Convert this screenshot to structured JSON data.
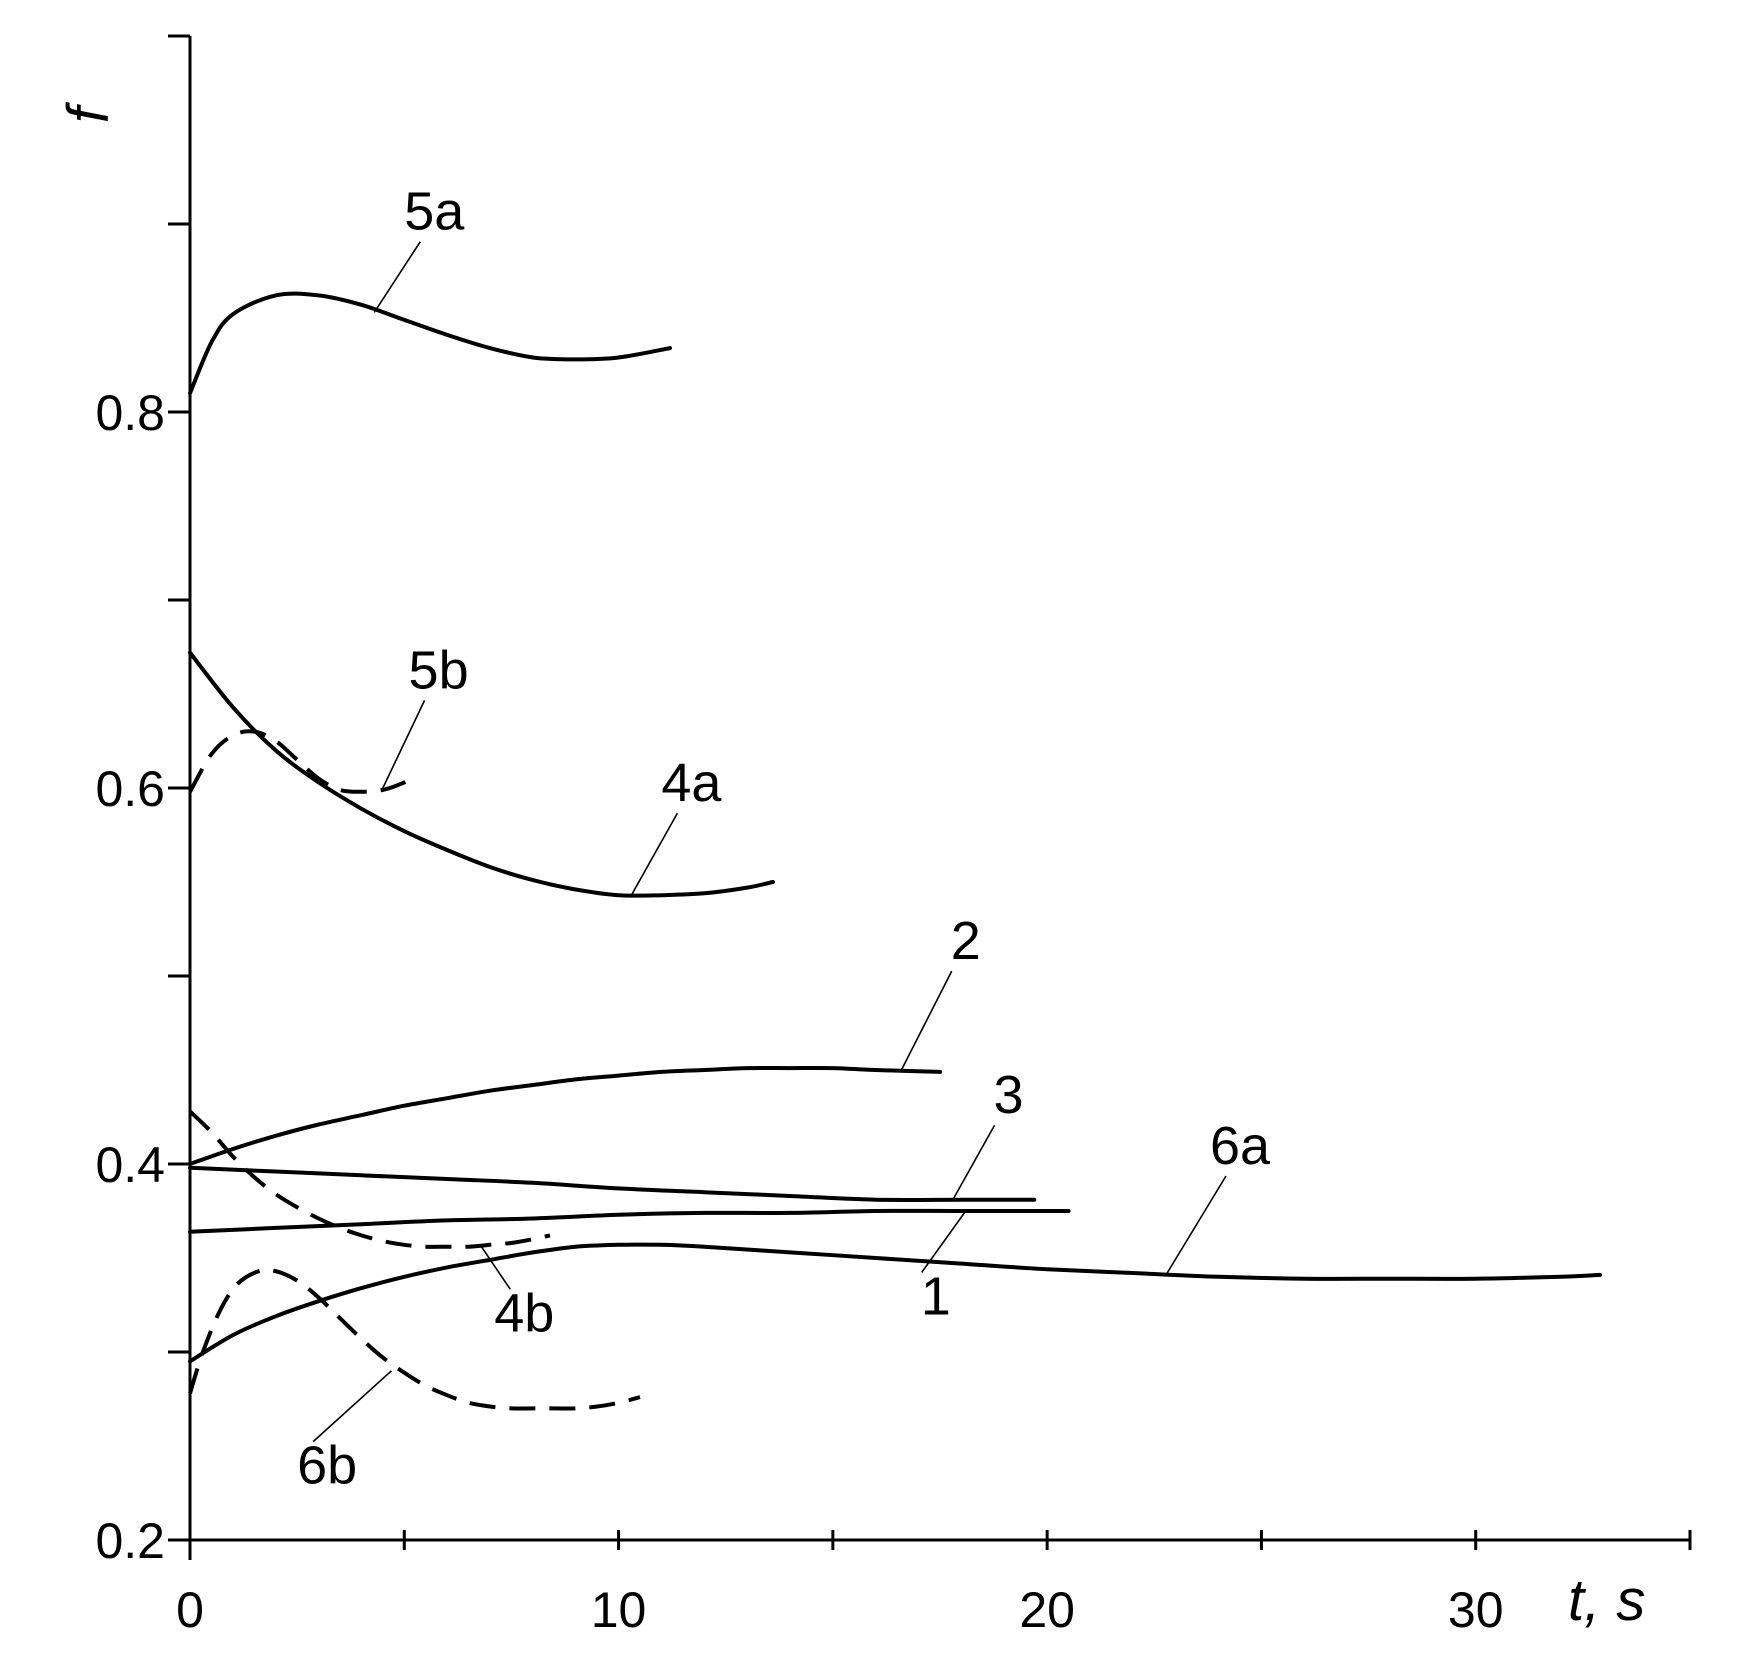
{
  "chart_data": {
    "type": "line",
    "title": "",
    "xlabel": "t",
    "xunit": ", s",
    "ylabel": "f",
    "xlim": [
      0,
      35
    ],
    "ylim": [
      0.2,
      1.0
    ],
    "x_ticks": [
      0,
      5,
      10,
      15,
      20,
      25,
      30,
      35
    ],
    "x_tick_labels": [
      {
        "value": 0,
        "text": "0"
      },
      {
        "value": 10,
        "text": "10"
      },
      {
        "value": 20,
        "text": "20"
      },
      {
        "value": 30,
        "text": "30"
      }
    ],
    "y_ticks": [
      0.2,
      0.3,
      0.4,
      0.5,
      0.6,
      0.7,
      0.8,
      0.9,
      1.0
    ],
    "y_tick_labels": [
      {
        "value": 0.2,
        "text": "0.2"
      },
      {
        "value": 0.4,
        "text": "0.4"
      },
      {
        "value": 0.6,
        "text": "0.6"
      },
      {
        "value": 0.8,
        "text": "0.8"
      }
    ],
    "grid": false,
    "legend": "none",
    "series": [
      {
        "name": "5a",
        "style": "solid",
        "x": [
          0,
          0.5,
          1,
          2,
          3,
          4,
          5,
          6,
          7,
          8,
          9,
          10,
          11.2
        ],
        "y": [
          0.81,
          0.837,
          0.852,
          0.862,
          0.862,
          0.857,
          0.849,
          0.841,
          0.834,
          0.829,
          0.828,
          0.829,
          0.834
        ]
      },
      {
        "name": "5b",
        "style": "dashed",
        "x": [
          0,
          0.5,
          1,
          1.5,
          2,
          2.5,
          3,
          3.5,
          4,
          4.5,
          5,
          5.2
        ],
        "y": [
          0.598,
          0.618,
          0.628,
          0.63,
          0.625,
          0.615,
          0.605,
          0.599,
          0.598,
          0.599,
          0.603,
          0.606
        ]
      },
      {
        "name": "4a",
        "style": "solid",
        "x": [
          0,
          1,
          2,
          3,
          4,
          5,
          6,
          7,
          8,
          9,
          10,
          11,
          12,
          13,
          13.6
        ],
        "y": [
          0.672,
          0.643,
          0.62,
          0.603,
          0.589,
          0.577,
          0.567,
          0.558,
          0.551,
          0.546,
          0.543,
          0.543,
          0.544,
          0.547,
          0.55
        ]
      },
      {
        "name": "2",
        "style": "solid",
        "x": [
          0,
          1,
          2,
          3,
          4,
          5,
          6,
          7,
          8,
          9,
          10,
          11,
          12,
          13,
          14,
          15,
          16,
          17.5
        ],
        "y": [
          0.4,
          0.408,
          0.415,
          0.421,
          0.426,
          0.431,
          0.435,
          0.439,
          0.442,
          0.445,
          0.447,
          0.449,
          0.45,
          0.451,
          0.451,
          0.451,
          0.45,
          0.449
        ]
      },
      {
        "name": "3",
        "style": "solid",
        "x": [
          0,
          2,
          4,
          6,
          8,
          10,
          12,
          14,
          16,
          18,
          19.7
        ],
        "y": [
          0.398,
          0.396,
          0.394,
          0.392,
          0.39,
          0.387,
          0.385,
          0.383,
          0.381,
          0.381,
          0.381
        ]
      },
      {
        "name": "1",
        "style": "solid",
        "x": [
          0,
          2,
          4,
          6,
          8,
          10,
          12,
          14,
          16,
          18,
          20.5
        ],
        "y": [
          0.364,
          0.366,
          0.368,
          0.37,
          0.371,
          0.373,
          0.374,
          0.374,
          0.375,
          0.375,
          0.375
        ]
      },
      {
        "name": "6a",
        "style": "solid",
        "x": [
          0,
          1,
          2,
          3,
          4,
          5,
          6,
          7,
          8,
          9,
          10,
          11,
          12,
          14,
          16,
          18,
          20,
          22,
          24,
          26,
          28,
          30,
          32,
          32.9
        ],
        "y": [
          0.295,
          0.309,
          0.319,
          0.327,
          0.334,
          0.34,
          0.345,
          0.349,
          0.353,
          0.356,
          0.357,
          0.357,
          0.356,
          0.353,
          0.35,
          0.347,
          0.344,
          0.342,
          0.34,
          0.339,
          0.339,
          0.339,
          0.34,
          0.341
        ]
      },
      {
        "name": "4b",
        "style": "dashed",
        "x": [
          0,
          0.5,
          1,
          1.5,
          2,
          2.5,
          3,
          3.5,
          4,
          4.5,
          5,
          5.5,
          6,
          6.5,
          7,
          7.5,
          8,
          8.4
        ],
        "y": [
          0.428,
          0.417,
          0.404,
          0.393,
          0.384,
          0.377,
          0.371,
          0.366,
          0.362,
          0.359,
          0.357,
          0.356,
          0.356,
          0.356,
          0.357,
          0.358,
          0.36,
          0.362
        ]
      },
      {
        "name": "6b",
        "style": "dashed",
        "x": [
          0,
          0.3,
          0.7,
          1.1,
          1.6,
          2,
          2.5,
          3,
          3.5,
          4,
          4.5,
          5,
          5.5,
          6,
          6.5,
          7,
          7.5,
          8,
          8.5,
          9,
          9.5,
          10,
          10.5
        ],
        "y": [
          0.278,
          0.3,
          0.322,
          0.336,
          0.343,
          0.343,
          0.338,
          0.329,
          0.318,
          0.307,
          0.297,
          0.289,
          0.282,
          0.277,
          0.273,
          0.271,
          0.27,
          0.27,
          0.27,
          0.27,
          0.271,
          0.273,
          0.276
        ]
      }
    ],
    "annotations": [
      {
        "text": "5a",
        "x": 5.7,
        "y": 0.897,
        "leader_to": [
          4.3,
          0.853
        ]
      },
      {
        "text": "5b",
        "x": 5.8,
        "y": 0.653,
        "leader_to": [
          4.5,
          0.6
        ]
      },
      {
        "text": "4a",
        "x": 11.7,
        "y": 0.593,
        "leader_to": [
          10.3,
          0.543
        ]
      },
      {
        "text": "2",
        "x": 18.1,
        "y": 0.509,
        "leader_to": [
          16.6,
          0.45
        ]
      },
      {
        "text": "3",
        "x": 19.1,
        "y": 0.427,
        "leader_to": [
          17.8,
          0.381
        ]
      },
      {
        "text": "6a",
        "x": 24.5,
        "y": 0.4,
        "leader_to": [
          22.8,
          0.342
        ]
      },
      {
        "text": "4b",
        "x": 7.8,
        "y": 0.311,
        "leader_to": [
          6.8,
          0.356
        ]
      },
      {
        "text": "1",
        "x": 17.4,
        "y": 0.32,
        "leader_to": [
          18.1,
          0.375
        ]
      },
      {
        "text": "6b",
        "x": 3.2,
        "y": 0.23,
        "leader_to": [
          4.7,
          0.29
        ]
      }
    ]
  }
}
